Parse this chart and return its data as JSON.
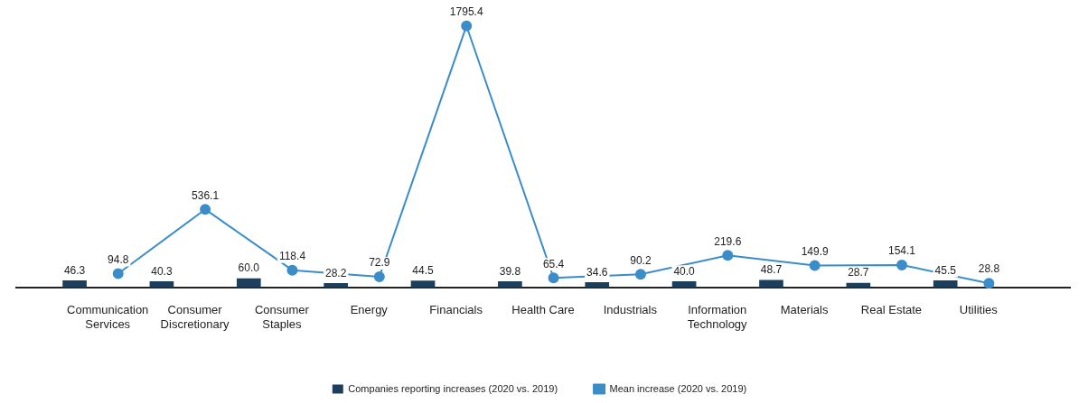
{
  "chart_data": {
    "type": "bar",
    "categories": [
      "Communication Services",
      "Consumer Discretionary",
      "Consumer Staples",
      "Energy",
      "Financials",
      "Health Care",
      "Industrials",
      "Information Technology",
      "Materials",
      "Real Estate",
      "Utilities"
    ],
    "series": [
      {
        "name": "Companies reporting increases (2020 vs. 2019)",
        "color": "#1c3f5e",
        "values": [
          46.3,
          40.3,
          60.0,
          28.2,
          44.5,
          39.8,
          34.6,
          40.0,
          48.7,
          28.7,
          45.5
        ],
        "value_labels": [
          "46.3",
          "40.3",
          "60.0",
          "28.2",
          "44.5",
          "39.8",
          "34.6",
          "40.0",
          "48.7",
          "28.7",
          "45.5"
        ]
      },
      {
        "name": "Mean increase (2020 vs. 2019)",
        "type": "line",
        "color": "#3a8dc8",
        "values": [
          94.8,
          536.1,
          118.4,
          72.9,
          1795.4,
          65.4,
          90.2,
          219.6,
          149.9,
          154.1,
          28.8
        ],
        "value_labels": [
          "94.8",
          "536.1",
          "118.4",
          "72.9",
          "1795.4",
          "65.4",
          "90.2",
          "219.6",
          "149.9",
          "154.1",
          "28.8"
        ]
      }
    ],
    "tick_labels": "x",
    "grid": false,
    "legend": "bottom",
    "marker": "circle",
    "line_style": "solid"
  }
}
